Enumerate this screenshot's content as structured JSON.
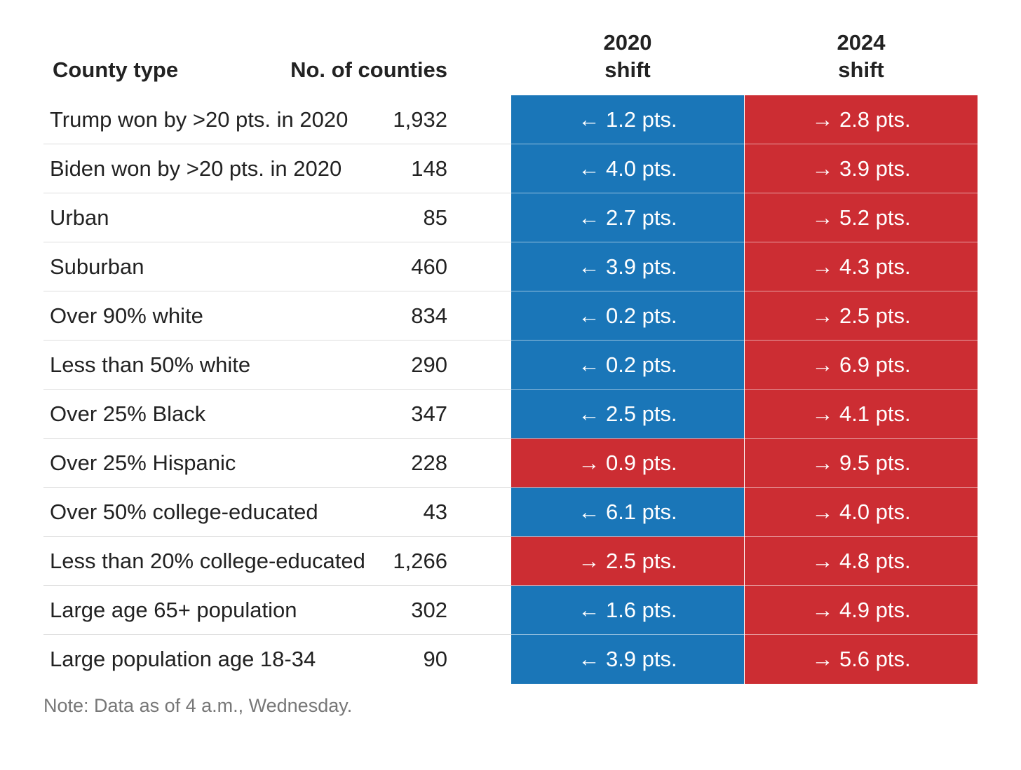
{
  "colors": {
    "democratic_shift": "#1a76b8",
    "republican_shift": "#cc2d33"
  },
  "chart_data": {
    "type": "table",
    "columns": [
      "County type",
      "No. of counties",
      "2020\nshift",
      "2024\nshift"
    ],
    "rows": [
      {
        "county_type": "Trump won by >20 pts. in 2020",
        "count": "1,932",
        "shift_2020": {
          "direction": "left",
          "text": "← 1.2 pts.",
          "party": "dem"
        },
        "shift_2024": {
          "direction": "right",
          "text": "→ 2.8 pts.",
          "party": "rep"
        }
      },
      {
        "county_type": "Biden won by >20 pts. in 2020",
        "count": "148",
        "shift_2020": {
          "direction": "left",
          "text": "← 4.0 pts.",
          "party": "dem"
        },
        "shift_2024": {
          "direction": "right",
          "text": "→ 3.9 pts.",
          "party": "rep"
        }
      },
      {
        "county_type": "Urban",
        "count": "85",
        "shift_2020": {
          "direction": "left",
          "text": "← 2.7 pts.",
          "party": "dem"
        },
        "shift_2024": {
          "direction": "right",
          "text": "→ 5.2 pts.",
          "party": "rep"
        }
      },
      {
        "county_type": "Suburban",
        "count": "460",
        "shift_2020": {
          "direction": "left",
          "text": "← 3.9 pts.",
          "party": "dem"
        },
        "shift_2024": {
          "direction": "right",
          "text": "→ 4.3 pts.",
          "party": "rep"
        }
      },
      {
        "county_type": "Over 90% white",
        "count": "834",
        "shift_2020": {
          "direction": "left",
          "text": "← 0.2 pts.",
          "party": "dem"
        },
        "shift_2024": {
          "direction": "right",
          "text": "→ 2.5 pts.",
          "party": "rep"
        }
      },
      {
        "county_type": "Less than 50% white",
        "count": "290",
        "shift_2020": {
          "direction": "left",
          "text": "← 0.2 pts.",
          "party": "dem"
        },
        "shift_2024": {
          "direction": "right",
          "text": "→ 6.9 pts.",
          "party": "rep"
        }
      },
      {
        "county_type": "Over 25% Black",
        "count": "347",
        "shift_2020": {
          "direction": "left",
          "text": "← 2.5 pts.",
          "party": "dem"
        },
        "shift_2024": {
          "direction": "right",
          "text": "→ 4.1 pts.",
          "party": "rep"
        }
      },
      {
        "county_type": "Over 25% Hispanic",
        "count": "228",
        "shift_2020": {
          "direction": "right",
          "text": "→ 0.9 pts.",
          "party": "rep"
        },
        "shift_2024": {
          "direction": "right",
          "text": "→ 9.5 pts.",
          "party": "rep"
        }
      },
      {
        "county_type": "Over 50% college-educated",
        "count": "43",
        "shift_2020": {
          "direction": "left",
          "text": "← 6.1 pts.",
          "party": "dem"
        },
        "shift_2024": {
          "direction": "right",
          "text": "→ 4.0 pts.",
          "party": "rep"
        }
      },
      {
        "county_type": "Less than 20% college-educated",
        "count": "1,266",
        "shift_2020": {
          "direction": "right",
          "text": "→ 2.5 pts.",
          "party": "rep"
        },
        "shift_2024": {
          "direction": "right",
          "text": "→ 4.8 pts.",
          "party": "rep"
        }
      },
      {
        "county_type": "Large age 65+ population",
        "count": "302",
        "shift_2020": {
          "direction": "left",
          "text": "← 1.6 pts.",
          "party": "dem"
        },
        "shift_2024": {
          "direction": "right",
          "text": "→ 4.9 pts.",
          "party": "rep"
        }
      },
      {
        "county_type": "Large population age 18-34",
        "count": "90",
        "shift_2020": {
          "direction": "left",
          "text": "← 3.9 pts.",
          "party": "dem"
        },
        "shift_2024": {
          "direction": "right",
          "text": "→ 5.6 pts.",
          "party": "rep"
        }
      }
    ],
    "note": "Note: Data as of 4 a.m., Wednesday."
  }
}
